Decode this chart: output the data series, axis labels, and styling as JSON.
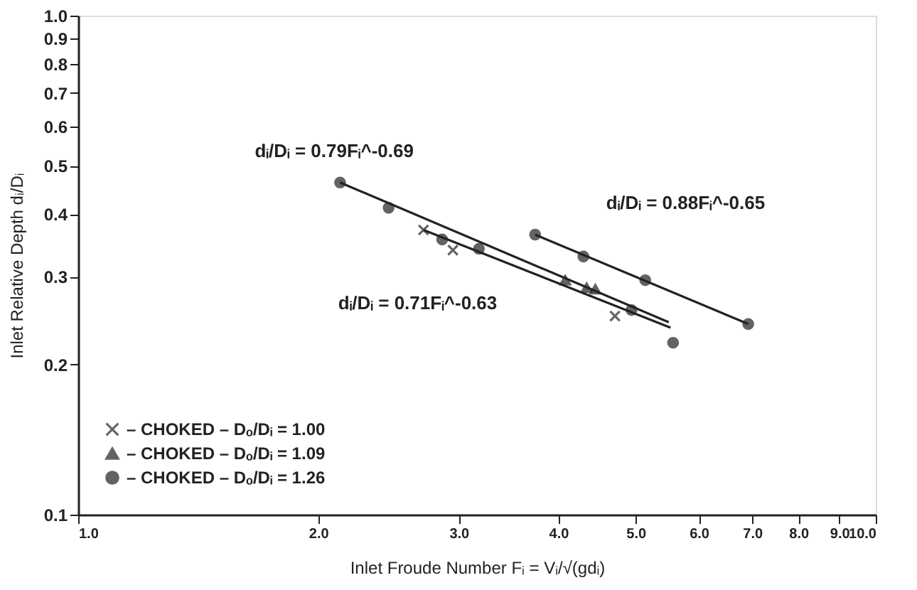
{
  "chart_data": {
    "type": "scatter",
    "xlabel": "Inlet Froude Number  Fᵢ = Vᵢ/√(gdᵢ)",
    "ylabel": "Inlet Relative Depth  dᵢ/Dᵢ",
    "log": "xy",
    "xlim": [
      1,
      10
    ],
    "xticks": [
      {
        "value": 1,
        "label": "1.0"
      },
      {
        "value": 2,
        "label": "2.0"
      },
      {
        "value": 3,
        "label": "3.0"
      },
      {
        "value": 4,
        "label": "4.0"
      },
      {
        "value": 5,
        "label": "5.0"
      },
      {
        "value": 6,
        "label": "6.0"
      },
      {
        "value": 7,
        "label": "7.0"
      },
      {
        "value": 8,
        "label": "8.0"
      },
      {
        "value": 9,
        "label": "9.0"
      },
      {
        "value": 10,
        "label": "10.0"
      }
    ],
    "ylim": [
      0.1,
      1
    ],
    "yticks": [
      0.1,
      0.2,
      0.3,
      0.4,
      0.5,
      0.6,
      0.7,
      0.8,
      0.9,
      {
        "value": 1,
        "label": "1.0"
      }
    ],
    "grid": false,
    "legend": "bottom left",
    "series": [
      {
        "name": "– CHOKED – Dₒ/Dᵢ = 1.00",
        "marker": "cross",
        "color": "#222222",
        "x": [
          2.71,
          2.95,
          4.71
        ],
        "values": [
          0.372,
          0.339,
          0.25
        ]
      },
      {
        "name": "– CHOKED – Dₒ/Dᵢ = 1.09",
        "marker": "triangle",
        "color": "#222222",
        "x": [
          4.08,
          4.34,
          4.45
        ],
        "values": [
          0.295,
          0.285,
          0.283
        ]
      },
      {
        "name": "– CHOKED – Dₒ/Dᵢ = 1.26",
        "marker": "circle",
        "color": "#222222",
        "x": [
          2.13,
          2.45,
          2.86,
          3.18,
          4.94,
          5.57,
          3.74,
          4.3,
          5.14,
          6.92
        ],
        "values": [
          0.463,
          0.412,
          0.356,
          0.341,
          0.257,
          0.221,
          0.364,
          0.329,
          0.295,
          0.241
        ]
      },
      {
        "name": "dᵢ/Dᵢ = 0.79Fᵢ^-0.69",
        "type": "line",
        "marker": "none",
        "line_style": "solid",
        "color": "#222222",
        "x": [
          2.13,
          5.5
        ],
        "values": [
          0.463,
          0.243
        ]
      },
      {
        "name": "dᵢ/Dᵢ = 0.71Fᵢ^-0.63",
        "type": "line",
        "marker": "none",
        "line_style": "solid",
        "color": "#222222",
        "x": [
          2.71,
          5.53
        ],
        "values": [
          0.372,
          0.237
        ]
      },
      {
        "name": "dᵢ/Dᵢ = 0.88Fᵢ^-0.65",
        "type": "line",
        "marker": "none",
        "line_style": "solid",
        "color": "#222222",
        "x": [
          3.74,
          6.92
        ],
        "values": [
          0.364,
          0.241
        ]
      }
    ]
  }
}
